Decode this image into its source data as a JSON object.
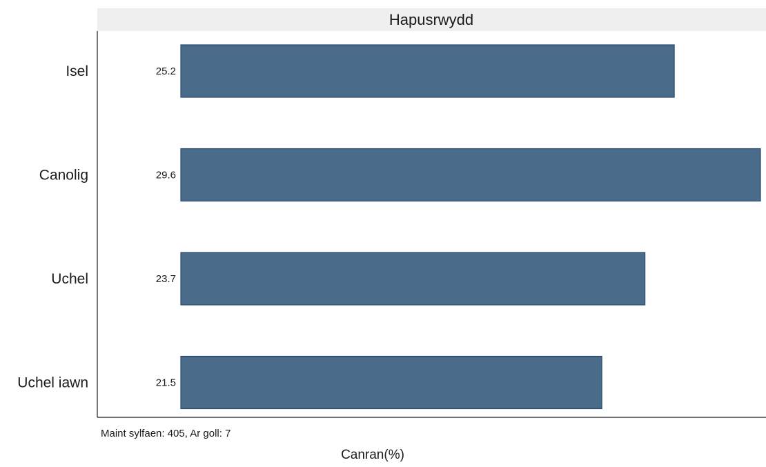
{
  "chart_data": {
    "type": "bar",
    "orientation": "horizontal",
    "facet_title": "Hapusrwydd",
    "categories": [
      "Isel",
      "Canolig",
      "Uchel ",
      "Uchel iawn"
    ],
    "values": [
      25.2,
      29.6,
      23.7,
      21.5
    ],
    "value_labels": [
      "25.2",
      "29.6",
      "23.7",
      "21.5"
    ],
    "xlabel": "Canran(%)",
    "ylabel": "",
    "note": "Maint sylfaen: 405, Ar goll: 7",
    "bar_color": "#4a6b8a",
    "bar_edge_color": "#2b4a6b",
    "strip_color": "#efefef",
    "grid": false
  }
}
